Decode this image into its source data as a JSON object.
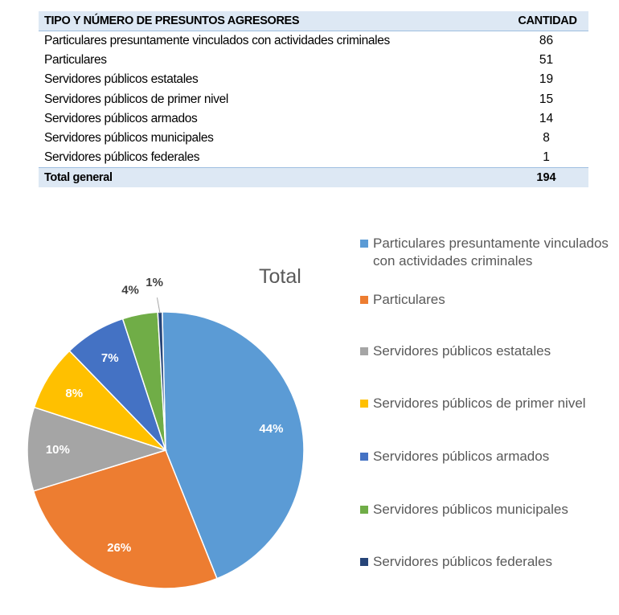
{
  "table": {
    "header_label": "TIPO Y NÚMERO DE PRESUNTOS AGRESORES",
    "header_value": "CANTIDAD",
    "rows": [
      {
        "label": "Particulares presuntamente vinculados con actividades criminales",
        "value": "86"
      },
      {
        "label": "Particulares",
        "value": "51"
      },
      {
        "label": "Servidores públicos estatales",
        "value": "19"
      },
      {
        "label": "Servidores públicos de primer nivel",
        "value": "15"
      },
      {
        "label": "Servidores públicos armados",
        "value": "14"
      },
      {
        "label": "Servidores públicos  municipales",
        "value": "8"
      },
      {
        "label": "Servidores públicos federales",
        "value": "1"
      }
    ],
    "total_label": "Total general",
    "total_value": "194"
  },
  "chart_data": {
    "type": "pie",
    "title": "Total",
    "legend_position": "right",
    "slices": [
      {
        "name": "Particulares presuntamente vinculados con actividades criminales",
        "value": 86,
        "label": "44%",
        "color": "#5b9bd5"
      },
      {
        "name": "Particulares",
        "value": 51,
        "label": "26%",
        "color": "#ed7d31"
      },
      {
        "name": "Servidores públicos estatales",
        "value": 19,
        "label": "10%",
        "color": "#a5a5a5"
      },
      {
        "name": "Servidores públicos de primer nivel",
        "value": 15,
        "label": "8%",
        "color": "#ffc000"
      },
      {
        "name": "Servidores públicos armados",
        "value": 14,
        "label": "7%",
        "color": "#4472c4"
      },
      {
        "name": "Servidores públicos municipales",
        "value": 8,
        "label": "4%",
        "color": "#70ad47"
      },
      {
        "name": "Servidores públicos federales",
        "value": 1,
        "label": "1%",
        "color": "#264478"
      }
    ]
  }
}
